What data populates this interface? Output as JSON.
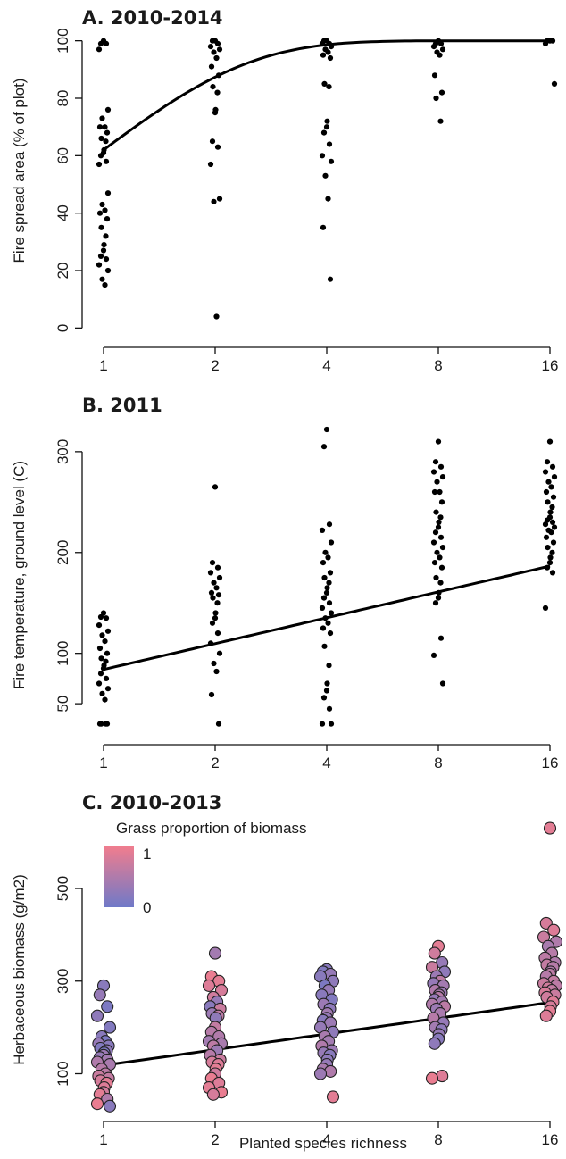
{
  "chart_data": [
    {
      "type": "scatter",
      "title": "A. 2010-2014",
      "ylabel": "Fire spread area (% of plot)",
      "xlabel": "",
      "x_scale": "log2",
      "x_ticks": [
        1,
        2,
        4,
        8,
        16
      ],
      "y_ticks": [
        0,
        20,
        40,
        60,
        80,
        100
      ],
      "ylim": [
        -3,
        103
      ],
      "fit": {
        "type": "saturating",
        "y0": 62,
        "ymax": 100,
        "k": 1.1
      },
      "points": [
        {
          "x": 1,
          "values": [
            100,
            99,
            99,
            97,
            76,
            73,
            70,
            70,
            68,
            66,
            65,
            62,
            61,
            60,
            58,
            57,
            47,
            43,
            41,
            40,
            38,
            35,
            32,
            29,
            27,
            25,
            24,
            22,
            20,
            17,
            15
          ]
        },
        {
          "x": 2,
          "values": [
            100,
            100,
            99,
            98,
            97,
            96,
            94,
            91,
            88,
            84,
            82,
            76,
            75,
            65,
            63,
            57,
            45,
            44,
            4
          ]
        },
        {
          "x": 4,
          "values": [
            100,
            100,
            99,
            99,
            98,
            97,
            96,
            95,
            94,
            85,
            84,
            72,
            70,
            68,
            64,
            60,
            58,
            53,
            45,
            35,
            17
          ]
        },
        {
          "x": 8,
          "values": [
            100,
            99,
            99,
            98,
            97,
            96,
            95,
            88,
            82,
            80,
            72
          ]
        },
        {
          "x": 16,
          "values": [
            100,
            100,
            100,
            99,
            85
          ]
        }
      ]
    },
    {
      "type": "scatter",
      "title": "B. 2011",
      "ylabel": "Fire temperature, ground level (C)",
      "xlabel": "",
      "x_scale": "log2",
      "x_ticks": [
        1,
        2,
        4,
        8,
        16
      ],
      "y_ticks": [
        50,
        100,
        200,
        300
      ],
      "ylim": [
        20,
        330
      ],
      "fit": {
        "type": "log",
        "a": 84,
        "b": 37
      },
      "points": [
        {
          "x": 1,
          "values": [
            140,
            136,
            135,
            128,
            122,
            118,
            112,
            105,
            100,
            95,
            92,
            88,
            85,
            80,
            75,
            70,
            65,
            60,
            54,
            30,
            30,
            30,
            30
          ]
        },
        {
          "x": 2,
          "values": [
            265,
            190,
            185,
            180,
            175,
            170,
            165,
            160,
            158,
            155,
            150,
            140,
            135,
            130,
            120,
            110,
            100,
            90,
            82,
            59,
            30
          ]
        },
        {
          "x": 4,
          "values": [
            322,
            305,
            228,
            222,
            210,
            200,
            195,
            190,
            180,
            175,
            170,
            165,
            160,
            155,
            150,
            145,
            140,
            135,
            130,
            125,
            120,
            107,
            88,
            70,
            63,
            56,
            45,
            30,
            30
          ]
        },
        {
          "x": 8,
          "values": [
            310,
            290,
            285,
            280,
            275,
            270,
            260,
            260,
            250,
            240,
            235,
            230,
            225,
            220,
            215,
            210,
            205,
            200,
            195,
            190,
            185,
            175,
            170,
            160,
            155,
            150,
            115,
            98,
            70
          ]
        },
        {
          "x": 16,
          "values": [
            310,
            290,
            285,
            280,
            275,
            270,
            265,
            260,
            255,
            250,
            245,
            240,
            235,
            232,
            230,
            228,
            225,
            222,
            220,
            215,
            210,
            205,
            200,
            195,
            190,
            185,
            180,
            145
          ]
        }
      ]
    },
    {
      "type": "scatter",
      "title": "C. 2010-2013",
      "ylabel": "Herbaceous biomass (g/m2)",
      "xlabel": "Planted species richness",
      "x_scale": "log2",
      "x_ticks": [
        1,
        2,
        4,
        8,
        16
      ],
      "y_ticks": [
        100,
        300,
        500
      ],
      "ylim": [
        20,
        660
      ],
      "fit": {
        "type": "log",
        "a": 118,
        "b": 49
      },
      "legend": {
        "title": "Grass proportion of biomass",
        "high_label": "1",
        "low_label": "0",
        "high_color": "#f07d8e",
        "low_color": "#6f79c8"
      },
      "points": [
        {
          "x": 1,
          "values": [
            290,
            270,
            245,
            225,
            200,
            180,
            170,
            165,
            160,
            155,
            150,
            145,
            140,
            135,
            130,
            125,
            120,
            110,
            100,
            95,
            90,
            85,
            80,
            70,
            60,
            55,
            45,
            35,
            30
          ],
          "grass": [
            0.2,
            0.3,
            0.1,
            0.25,
            0.15,
            0.2,
            0.1,
            0.3,
            0.2,
            0.15,
            0.25,
            0.1,
            0.35,
            0.3,
            0.4,
            0.5,
            0.45,
            0.55,
            0.6,
            0.7,
            0.65,
            0.8,
            0.9,
            0.85,
            0.75,
            0.9,
            0.5,
            0.95,
            0.2
          ]
        },
        {
          "x": 2,
          "values": [
            360,
            310,
            300,
            290,
            280,
            265,
            255,
            245,
            240,
            230,
            225,
            220,
            200,
            190,
            180,
            170,
            165,
            160,
            150,
            140,
            130,
            125,
            120,
            110,
            100,
            90,
            80,
            70,
            60,
            55
          ],
          "grass": [
            0.4,
            0.95,
            0.9,
            0.85,
            0.8,
            0.75,
            0.3,
            0.2,
            0.7,
            0.35,
            0.6,
            0.25,
            0.65,
            0.55,
            0.5,
            0.4,
            0.45,
            0.6,
            0.35,
            0.55,
            0.7,
            0.8,
            0.85,
            0.9,
            0.75,
            0.95,
            0.85,
            0.9,
            0.95,
            0.8
          ]
        },
        {
          "x": 4,
          "values": [
            325,
            320,
            315,
            310,
            300,
            290,
            280,
            270,
            260,
            250,
            240,
            230,
            220,
            215,
            210,
            200,
            190,
            180,
            170,
            160,
            150,
            145,
            140,
            130,
            120,
            110,
            105,
            100,
            50
          ],
          "grass": [
            0.2,
            0.15,
            0.3,
            0.2,
            0.25,
            0.1,
            0.3,
            0.2,
            0.15,
            0.35,
            0.25,
            0.4,
            0.3,
            0.2,
            0.35,
            0.3,
            0.25,
            0.45,
            0.4,
            0.5,
            0.35,
            0.3,
            0.2,
            0.25,
            0.3,
            0.45,
            0.5,
            0.35,
            0.9
          ]
        },
        {
          "x": 8,
          "values": [
            375,
            360,
            340,
            330,
            320,
            310,
            300,
            295,
            290,
            280,
            275,
            270,
            265,
            260,
            255,
            250,
            245,
            240,
            230,
            220,
            210,
            200,
            195,
            185,
            175,
            165,
            95,
            90
          ],
          "grass": [
            0.9,
            0.75,
            0.3,
            0.7,
            0.25,
            0.35,
            0.6,
            0.3,
            0.4,
            0.5,
            0.35,
            0.45,
            0.55,
            0.3,
            0.4,
            0.5,
            0.6,
            0.35,
            0.45,
            0.55,
            0.3,
            0.4,
            0.25,
            0.3,
            0.2,
            0.25,
            0.85,
            0.95
          ]
        },
        {
          "x": 16,
          "values": [
            630,
            425,
            410,
            395,
            385,
            375,
            360,
            350,
            340,
            335,
            330,
            320,
            315,
            310,
            300,
            295,
            290,
            285,
            280,
            275,
            270,
            265,
            255,
            245,
            235,
            225
          ],
          "grass": [
            0.9,
            0.8,
            0.85,
            0.7,
            0.5,
            0.45,
            0.55,
            0.6,
            0.5,
            0.65,
            0.55,
            0.5,
            0.6,
            0.55,
            0.65,
            0.7,
            0.6,
            0.75,
            0.65,
            0.8,
            0.7,
            0.75,
            0.85,
            0.8,
            0.9,
            0.85
          ]
        }
      ]
    }
  ]
}
